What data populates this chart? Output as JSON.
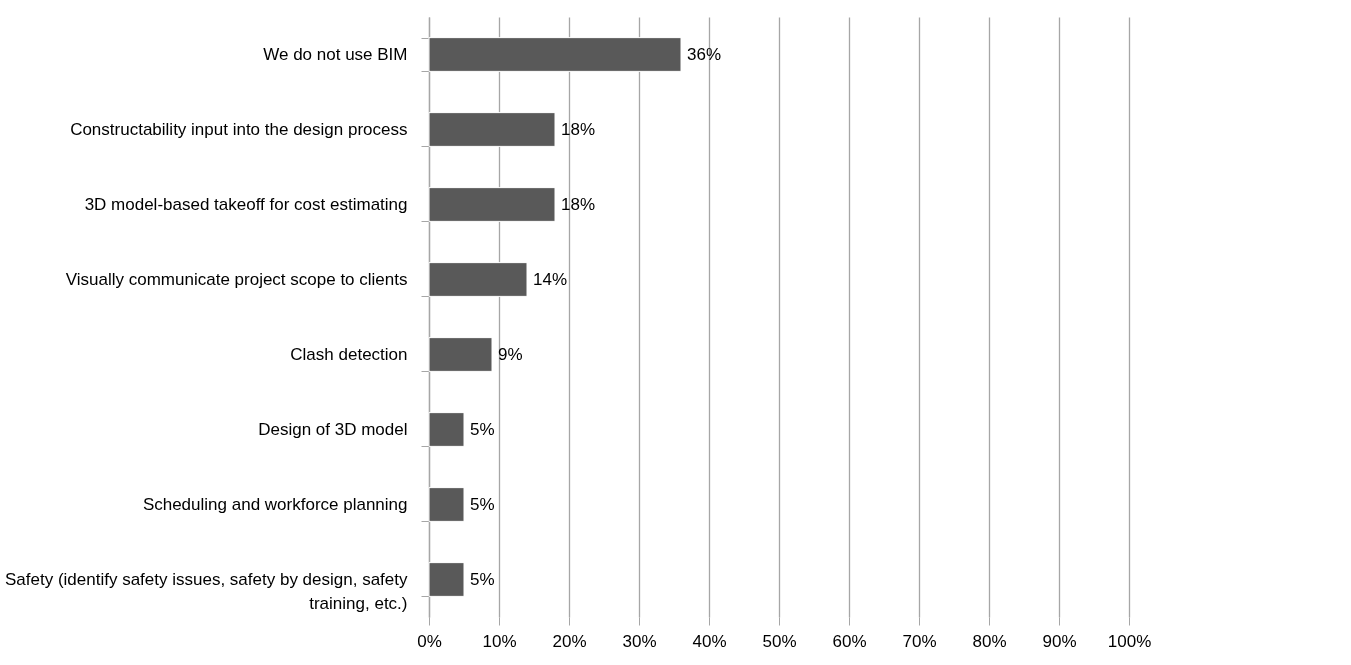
{
  "chart_data": {
    "type": "bar",
    "orientation": "horizontal",
    "categories": [
      "We do not use BIM",
      "Constructability input into the design process",
      "3D model-based takeoff for cost estimating",
      "Visually communicate project scope to clients",
      "Clash detection",
      "Design of 3D model",
      "Scheduling and workforce planning",
      "Safety (identify safety issues, safety by design, safety training, etc.)"
    ],
    "values": [
      36,
      18,
      18,
      14,
      9,
      5,
      5,
      5
    ],
    "value_labels": [
      "36%",
      "18%",
      "18%",
      "14%",
      "9%",
      "5%",
      "5%",
      "5%"
    ],
    "color": "#595959",
    "xlim": [
      0,
      100
    ],
    "xticks": [
      {
        "value": 0,
        "label": "0%"
      },
      {
        "value": 10,
        "label": "10%"
      },
      {
        "value": 20,
        "label": "20%"
      },
      {
        "value": 30,
        "label": "30%"
      },
      {
        "value": 40,
        "label": "40%"
      },
      {
        "value": 50,
        "label": "50%"
      },
      {
        "value": 60,
        "label": "60%"
      },
      {
        "value": 70,
        "label": "70%"
      },
      {
        "value": 80,
        "label": "80%"
      },
      {
        "value": 90,
        "label": "90%"
      },
      {
        "value": 100,
        "label": "100%"
      }
    ],
    "grid": "x"
  }
}
